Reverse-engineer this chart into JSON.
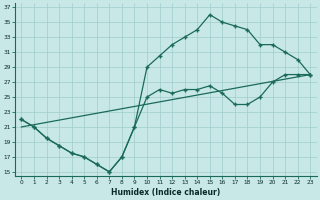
{
  "xlabel": "Humidex (Indice chaleur)",
  "bg_color": "#c8e8e8",
  "grid_color": "#a0cccc",
  "line_color": "#1a6a5a",
  "xlim": [
    -0.5,
    23.5
  ],
  "ylim": [
    14.5,
    37.5
  ],
  "xticks": [
    0,
    1,
    2,
    3,
    4,
    5,
    6,
    7,
    8,
    9,
    10,
    11,
    12,
    13,
    14,
    15,
    16,
    17,
    18,
    19,
    20,
    21,
    22,
    23
  ],
  "yticks": [
    15,
    17,
    19,
    21,
    23,
    25,
    27,
    29,
    31,
    33,
    35,
    37
  ],
  "line1_x": [
    0,
    1,
    2,
    3,
    4,
    5,
    6,
    7,
    8,
    9,
    10,
    11,
    12,
    13,
    14,
    15,
    16,
    17,
    18,
    19,
    20,
    21,
    22,
    23
  ],
  "line1_y": [
    22,
    21,
    19.5,
    18.5,
    17.5,
    17,
    16,
    15,
    17,
    21,
    25,
    26,
    25.5,
    26,
    26,
    26.5,
    25.5,
    24,
    24,
    25,
    27,
    28,
    28,
    28
  ],
  "line2_x": [
    0,
    1,
    2,
    3,
    4,
    5,
    6,
    7,
    8,
    9,
    10,
    11,
    12,
    13,
    14,
    15,
    16,
    17,
    18,
    19,
    20,
    21,
    22,
    23
  ],
  "line2_y": [
    22,
    21,
    19.5,
    18.5,
    17.5,
    17,
    16,
    15,
    17,
    21,
    29,
    30.5,
    32,
    33,
    34,
    36,
    35,
    34.5,
    34,
    32,
    32,
    31,
    30,
    28
  ],
  "line3_x": [
    0,
    23
  ],
  "line3_y": [
    21,
    28
  ]
}
